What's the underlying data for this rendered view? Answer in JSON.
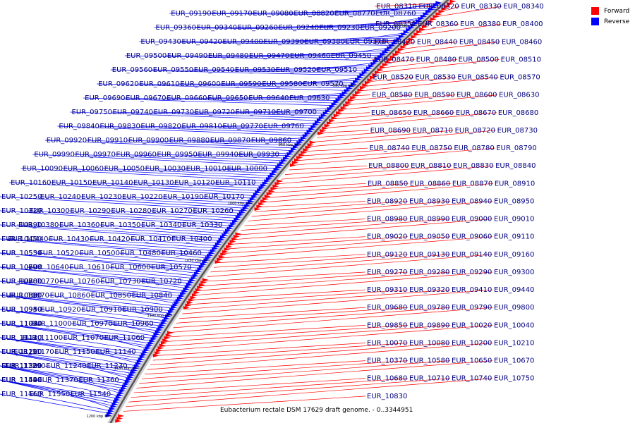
{
  "title": "Eubacterium rectale DSM 17629 draft genome. - 0..3344951",
  "legend": {
    "forward_label": "Forward",
    "reverse_label": "Reverse",
    "forward_color": "#ff0000",
    "reverse_color": "#0000ff"
  },
  "scale_labels": [
    "850 kbp",
    "900 kbp",
    "950 kbp",
    "1000 kbp",
    "1050 kbp",
    "1100 kbp",
    "1150 kbp",
    "1200 kbp"
  ],
  "forward_genes": [
    "EUR_08310",
    "EUR_08320",
    "EUR_08330",
    "EUR_08340",
    "EUR_08350",
    "EUR_08360",
    "EUR_08380",
    "EUR_08400",
    "EUR_08420",
    "EUR_08440",
    "EUR_08450",
    "EUR_08460",
    "EUR_08470",
    "EUR_08480",
    "EUR_08500",
    "EUR_08510",
    "EUR_08520",
    "EUR_08530",
    "EUR_08540",
    "EUR_08570",
    "EUR_08580",
    "EUR_08590",
    "EUR_08600",
    "EUR_08630",
    "EUR_08650",
    "EUR_08660",
    "EUR_08670",
    "EUR_08680",
    "EUR_08690",
    "EUR_08710",
    "EUR_08720",
    "EUR_08730",
    "EUR_08740",
    "EUR_08750",
    "EUR_08780",
    "EUR_08790",
    "EUR_08800",
    "EUR_08810",
    "EUR_08830",
    "EUR_08840",
    "EUR_08850",
    "EUR_08860",
    "EUR_08870",
    "EUR_08910",
    "EUR_08920",
    "EUR_08930",
    "EUR_08940",
    "EUR_08950",
    "EUR_08980",
    "EUR_08990",
    "EUR_09000",
    "EUR_09010",
    "EUR_09020",
    "EUR_09050",
    "EUR_09060",
    "EUR_09110",
    "EUR_09120",
    "EUR_09130",
    "EUR_09140",
    "EUR_09160",
    "EUR_09270",
    "EUR_09280",
    "EUR_09290",
    "EUR_09300",
    "EUR_09310",
    "EUR_09320",
    "EUR_09410",
    "EUR_09440",
    "EUR_09680",
    "EUR_09780",
    "EUR_09790",
    "EUR_09800",
    "EUR_09850",
    "EUR_09890",
    "EUR_10020",
    "EUR_10040",
    "EUR_10070",
    "EUR_10080",
    "EUR_10200",
    "EUR_10210",
    "EUR_10370",
    "EUR_10580",
    "EUR_10650",
    "EUR_10670",
    "EUR_10680",
    "EUR_10710",
    "EUR_10740",
    "EUR_10750",
    "EUR_10830"
  ],
  "reverse_genes": [
    "EUR_08760",
    "EUR_08770",
    "EUR_08820",
    "EUR_09080",
    "EUR_09170",
    "EUR_09190",
    "EUR_09200",
    "EUR_09230",
    "EUR_09240",
    "EUR_09260",
    "EUR_09340",
    "EUR_09360",
    "EUR_09370",
    "EUR_09380",
    "EUR_09390",
    "EUR_09400",
    "EUR_09420",
    "EUR_09430",
    "EUR_09450",
    "EUR_09460",
    "EUR_09470",
    "EUR_09480",
    "EUR_09490",
    "EUR_09500",
    "EUR_09510",
    "EUR_09520",
    "EUR_09530",
    "EUR_09540",
    "EUR_09550",
    "EUR_09560",
    "EUR_09570",
    "EUR_09580",
    "EUR_09590",
    "EUR_09600",
    "EUR_09610",
    "EUR_09620",
    "EUR_09630",
    "EUR_09640",
    "EUR_09650",
    "EUR_09660",
    "EUR_09670",
    "EUR_09690",
    "EUR_09700",
    "EUR_09710",
    "EUR_09720",
    "EUR_09730",
    "EUR_09740",
    "EUR_09750",
    "EUR_09760",
    "EUR_09770",
    "EUR_09810",
    "EUR_09820",
    "EUR_09830",
    "EUR_09840",
    "EUR_09860",
    "EUR_09870",
    "EUR_09880",
    "EUR_09900",
    "EUR_09910",
    "EUR_09920",
    "EUR_09930",
    "EUR_09940",
    "EUR_09950",
    "EUR_09960",
    "EUR_09970",
    "EUR_09990",
    "EUR_10000",
    "EUR_10010",
    "EUR_10030",
    "EUR_10050",
    "EUR_10060",
    "EUR_10090",
    "EUR_10110",
    "EUR_10120",
    "EUR_10130",
    "EUR_10140",
    "EUR_10150",
    "EUR_10160",
    "EUR_10170",
    "EUR_10190",
    "EUR_10220",
    "EUR_10230",
    "EUR_10240",
    "EUR_10250",
    "EUR_10260",
    "EUR_10270",
    "EUR_10280",
    "EUR_10290",
    "EUR_10300",
    "EUR_10320",
    "EUR_10330",
    "EUR_10340",
    "EUR_10350",
    "EUR_10360",
    "EUR_10380",
    "EUR_10390",
    "EUR_10400",
    "EUR_10410",
    "EUR_10420",
    "EUR_10430",
    "EUR_10440",
    "EUR_10450",
    "EUR_10460",
    "EUR_10480",
    "EUR_10500",
    "EUR_10520",
    "EUR_10530",
    "EUR_10550",
    "EUR_10570",
    "EUR_10600",
    "EUR_10610",
    "EUR_10640",
    "EUR_10690",
    "EUR_10700",
    "EUR_10720",
    "EUR_10730",
    "EUR_10760",
    "EUR_10770",
    "EUR_10780",
    "EUR_10800",
    "EUR_10840",
    "EUR_10850",
    "EUR_10860",
    "EUR_10870",
    "EUR_10880",
    "EUR_10890",
    "EUR_10900",
    "EUR_10910",
    "EUR_10920",
    "EUR_10930",
    "EUR_10940",
    "EUR_10950",
    "EUR_10960",
    "EUR_10970",
    "EUR_11000",
    "EUR_11020",
    "EUR_11030",
    "EUR_11040",
    "EUR_11060",
    "EUR_11070",
    "EUR_11100",
    "EUR_11110",
    "EUR_11120",
    "EUR_11130",
    "EUR_11140",
    "EUR_11150",
    "EUR_11170",
    "EUR_11190",
    "EUR_11200",
    "EUR_11210",
    "EUR_11230",
    "EUR_11240",
    "EUR_11290",
    "EUR_11300",
    "EUR_11320",
    "EUR_11330",
    "EUR_11360",
    "EUR_11370",
    "EUR_11420",
    "EUR_11440",
    "EUR_11490",
    "EUR_11500",
    "EUR_11540",
    "EUR_11550",
    "EUR_11560"
  ]
}
